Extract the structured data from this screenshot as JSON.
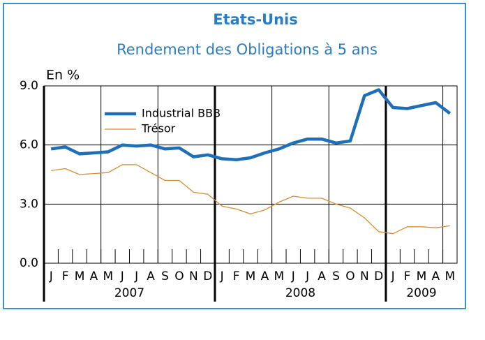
{
  "chart_data": {
    "type": "line",
    "title": "Etats-Unis",
    "subtitle": "Rendement des Obligations à 5 ans",
    "ylabel": "En %",
    "categories": [
      "J",
      "F",
      "M",
      "A",
      "M",
      "J",
      "J",
      "A",
      "S",
      "O",
      "N",
      "D",
      "J",
      "F",
      "M",
      "A",
      "M",
      "J",
      "J",
      "A",
      "S",
      "O",
      "N",
      "D",
      "J",
      "F",
      "M",
      "A",
      "M"
    ],
    "category_years": [
      "2007",
      "2007",
      "2007",
      "2007",
      "2007",
      "2007",
      "2007",
      "2007",
      "2007",
      "2007",
      "2007",
      "2007",
      "2008",
      "2008",
      "2008",
      "2008",
      "2008",
      "2008",
      "2008",
      "2008",
      "2008",
      "2008",
      "2008",
      "2008",
      "2009",
      "2009",
      "2009",
      "2009",
      "2009"
    ],
    "series": [
      {
        "name": "Industrial BBB",
        "color": "#1f6fb8",
        "values": [
          5.8,
          5.9,
          5.55,
          5.6,
          5.65,
          6.0,
          5.95,
          6.0,
          5.8,
          5.85,
          5.4,
          5.5,
          5.3,
          5.25,
          5.35,
          5.6,
          5.8,
          6.1,
          6.3,
          6.3,
          6.1,
          6.2,
          8.5,
          8.8,
          7.9,
          7.85,
          8.0,
          8.15,
          7.6
        ]
      },
      {
        "name": "Trésor",
        "color": "#d98c2e",
        "values": [
          4.7,
          4.8,
          4.5,
          4.55,
          4.6,
          5.0,
          5.0,
          4.6,
          4.2,
          4.2,
          3.6,
          3.5,
          2.9,
          2.75,
          2.5,
          2.7,
          3.1,
          3.4,
          3.3,
          3.3,
          3.0,
          2.8,
          2.3,
          1.6,
          1.5,
          1.85,
          1.85,
          1.8,
          1.9
        ]
      }
    ],
    "ylim": [
      0,
      9
    ],
    "yticks": [
      {
        "value": 0,
        "label": "0.0"
      },
      {
        "value": 3,
        "label": "3.0"
      },
      {
        "value": 6,
        "label": "6.0"
      },
      {
        "value": 9,
        "label": "9.0"
      }
    ],
    "grid": true,
    "border_color": "#3a8fd0"
  }
}
